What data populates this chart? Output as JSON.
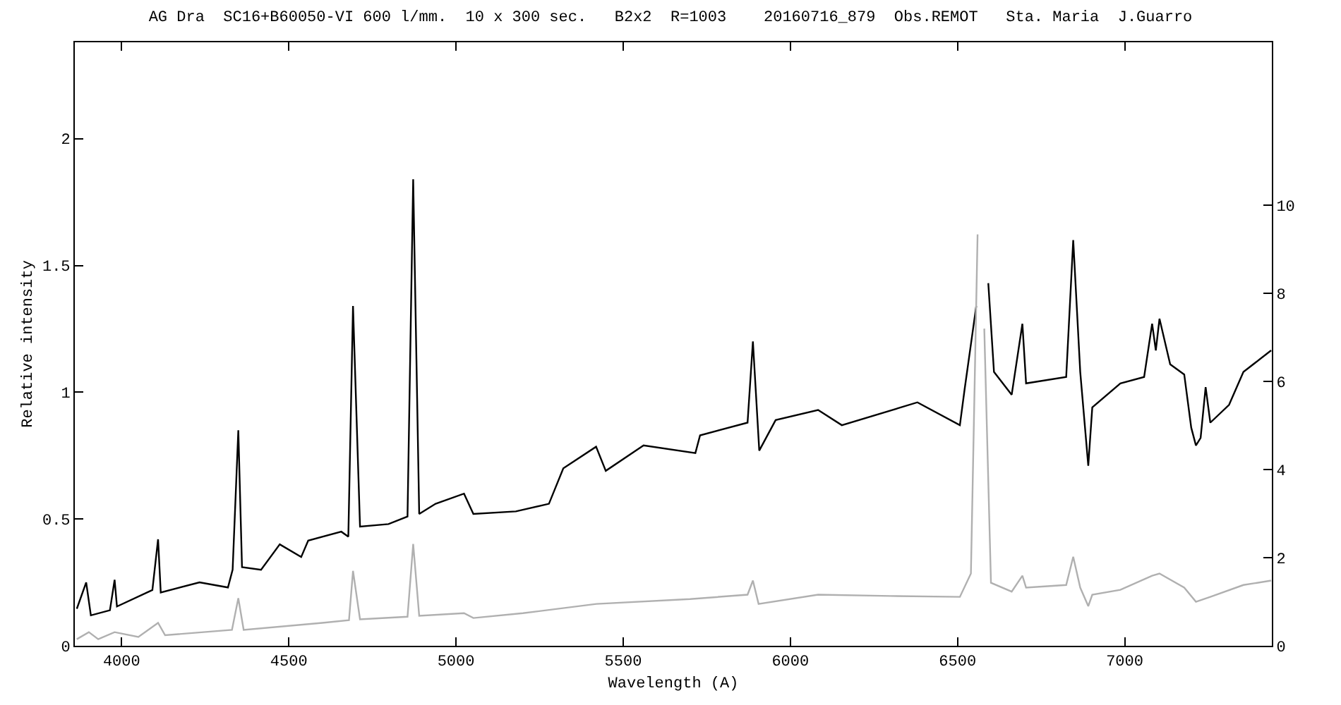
{
  "chart_data": {
    "type": "line",
    "title": "AG Dra  SC16+B60050-VI 600 l/mm.  10 x 300 sec.   B2x2  R=1003    20160716_879  Obs.REMOT   Sta. Maria  J.Guarro",
    "xlabel": "Wavelength (A)",
    "ylabel": "Relative intensity",
    "xlim": [
      3860,
      7440
    ],
    "xticks": [
      4000,
      4500,
      5000,
      5500,
      6000,
      6500,
      7000
    ],
    "ylim": [
      0,
      2.38
    ],
    "yticks": [
      0,
      0.5,
      1,
      1.5,
      2
    ],
    "y2lim": [
      0,
      13.7
    ],
    "y2ticks": [
      0,
      2,
      4,
      6,
      8,
      10
    ],
    "marker": "none",
    "line_style": "solid",
    "series": [
      {
        "color": "#000000",
        "x": [
          3866,
          3894,
          3908,
          3965,
          3979,
          3986,
          4092,
          4109,
          4117,
          4233,
          4318,
          4332,
          4349,
          4360,
          4417,
          4473,
          4537,
          4558,
          4657,
          4678,
          4692,
          4713,
          4798,
          4855,
          4872,
          4890,
          4939,
          5024,
          5052,
          5179,
          5278,
          5321,
          5419,
          5448,
          5561,
          5716,
          5730,
          5872,
          5888,
          5907,
          5956,
          6083,
          6154,
          6380,
          6507,
          6521,
          6556,
          6568,
          6586,
          6592,
          6609,
          6662,
          6694,
          6705,
          6825,
          6846,
          6867,
          6891,
          6903,
          6987,
          7058,
          7082,
          7093,
          7104,
          7136,
          7178,
          7199,
          7213,
          7227,
          7242,
          7256,
          7312,
          7355,
          7438
        ],
        "values": [
          0.146,
          0.25,
          0.12,
          0.14,
          0.26,
          0.155,
          0.22,
          0.42,
          0.21,
          0.25,
          0.23,
          0.3,
          0.85,
          0.31,
          0.3,
          0.4,
          0.35,
          0.415,
          0.45,
          0.43,
          1.34,
          0.47,
          0.48,
          0.51,
          1.84,
          0.52,
          0.56,
          0.6,
          0.52,
          0.53,
          0.56,
          0.7,
          0.785,
          0.69,
          0.79,
          0.76,
          0.83,
          0.88,
          1.2,
          0.77,
          0.89,
          0.93,
          0.87,
          0.96,
          0.87,
          1.01,
          1.34,
          null,
          null,
          1.43,
          1.08,
          0.99,
          1.27,
          1.035,
          1.06,
          1.6,
          1.08,
          0.71,
          0.94,
          1.035,
          1.06,
          1.27,
          1.165,
          1.29,
          1.11,
          1.07,
          0.86,
          0.79,
          0.82,
          1.02,
          0.88,
          0.95,
          1.08,
          1.165
        ]
      },
      {
        "color": "#b0b0b0",
        "axis": "y2",
        "x": [
          3866,
          3902,
          3930,
          3979,
          4050,
          4109,
          4130,
          4330,
          4349,
          4365,
          4600,
          4680,
          4692,
          4713,
          4855,
          4872,
          4890,
          5024,
          5052,
          5200,
          5420,
          5700,
          5872,
          5888,
          5905,
          6083,
          6300,
          6507,
          6540,
          6560,
          6568,
          6580,
          6600,
          6662,
          6694,
          6705,
          6825,
          6846,
          6867,
          6891,
          6903,
          6987,
          7082,
          7104,
          7178,
          7213,
          7256,
          7355,
          7438
        ],
        "values": [
          0.15,
          0.31,
          0.15,
          0.31,
          0.2,
          0.52,
          0.24,
          0.36,
          1.08,
          0.36,
          0.52,
          0.58,
          1.7,
          0.6,
          0.66,
          2.31,
          0.68,
          0.74,
          0.63,
          0.74,
          0.95,
          1.06,
          1.16,
          1.48,
          0.95,
          1.16,
          1.13,
          1.11,
          1.64,
          9.34,
          null,
          7.2,
          1.43,
          1.23,
          1.59,
          1.32,
          1.38,
          2.02,
          1.32,
          0.9,
          1.16,
          1.27,
          1.59,
          1.64,
          1.32,
          1.0,
          1.11,
          1.38,
          1.48
        ]
      }
    ]
  }
}
